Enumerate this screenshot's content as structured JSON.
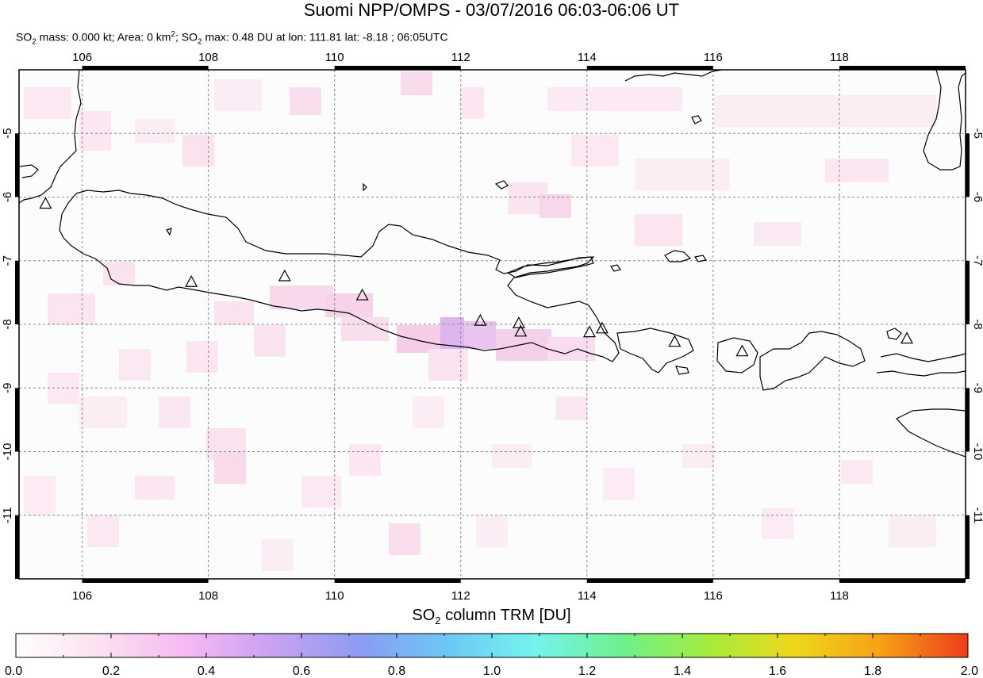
{
  "title": "Suomi NPP/OMPS - 03/07/2016 06:03-06:06 UT",
  "subtitle": {
    "mass_label": "SO",
    "mass_sub": "2",
    "mass_rest": " mass: 0.000 kt; Area: 0 km",
    "area_sup": "2",
    "max_label": "; SO",
    "max_sub": "2",
    "max_rest": " max: 0.48 DU at lon: 111.81 lat: -8.18 ; 06:05UTC"
  },
  "map": {
    "lon_range": [
      105.0,
      120.0
    ],
    "lat_range": [
      -12.0,
      -4.0
    ],
    "lon_ticks": [
      "106",
      "108",
      "110",
      "112",
      "114",
      "116",
      "118"
    ],
    "lon_tick_values": [
      106,
      108,
      110,
      112,
      114,
      116,
      118
    ],
    "lat_ticks": [
      "-5",
      "-6",
      "-7",
      "-8",
      "-9",
      "-10",
      "-11"
    ],
    "lat_tick_values": [
      -5,
      -6,
      -7,
      -8,
      -9,
      -10,
      -11
    ],
    "grid": true,
    "volcanoes": [
      {
        "lon": 105.42,
        "lat": -6.1
      },
      {
        "lon": 107.73,
        "lat": -7.33
      },
      {
        "lon": 109.21,
        "lat": -7.24
      },
      {
        "lon": 110.44,
        "lat": -7.54
      },
      {
        "lon": 112.31,
        "lat": -7.94
      },
      {
        "lon": 112.92,
        "lat": -7.98
      },
      {
        "lon": 112.95,
        "lat": -8.11
      },
      {
        "lon": 114.04,
        "lat": -8.12
      },
      {
        "lon": 114.24,
        "lat": -8.06
      },
      {
        "lon": 115.39,
        "lat": -8.27
      },
      {
        "lon": 116.46,
        "lat": -8.42
      },
      {
        "lon": 119.07,
        "lat": -8.22
      }
    ]
  },
  "colorbar": {
    "title_prefix": "SO",
    "title_sub": "2",
    "title_suffix": " column TRM [DU]",
    "labels": [
      "0.0",
      "0.2",
      "0.4",
      "0.6",
      "0.8",
      "1.0",
      "1.2",
      "1.4",
      "1.6",
      "1.8",
      "2.0"
    ],
    "stops": [
      "#ffffff",
      "#fbe0ef",
      "#f5b8f2",
      "#c7a0f2",
      "#8c9cf2",
      "#6cc8f4",
      "#74f4ee",
      "#6ef08e",
      "#a4ec3e",
      "#eed81a",
      "#f6a016",
      "#ee3c1a"
    ]
  }
}
